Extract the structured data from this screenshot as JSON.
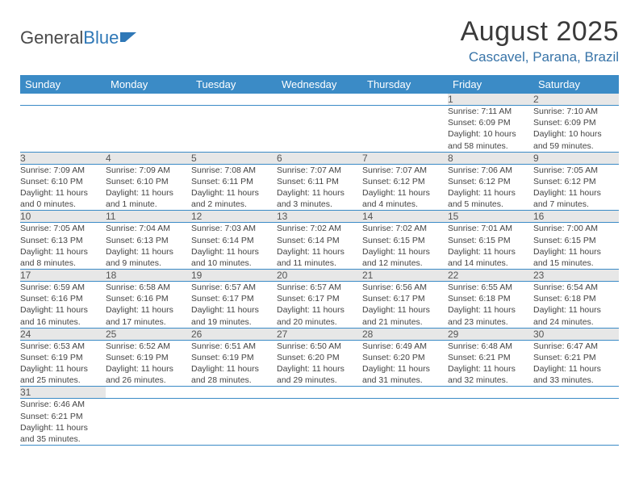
{
  "logo": {
    "text1": "General",
    "text2": "Blue"
  },
  "title": "August 2025",
  "location": "Cascavel, Parana, Brazil",
  "colors": {
    "header_bg": "#3b8bc6",
    "header_text": "#ffffff",
    "daynum_bg": "#e7e7e7",
    "location_color": "#3874a8",
    "row_border": "#3b8bc6"
  },
  "weekdays": [
    "Sunday",
    "Monday",
    "Tuesday",
    "Wednesday",
    "Thursday",
    "Friday",
    "Saturday"
  ],
  "weeks": [
    [
      null,
      null,
      null,
      null,
      null,
      {
        "n": "1",
        "sr": "Sunrise: 7:11 AM",
        "ss": "Sunset: 6:09 PM",
        "d1": "Daylight: 10 hours",
        "d2": "and 58 minutes."
      },
      {
        "n": "2",
        "sr": "Sunrise: 7:10 AM",
        "ss": "Sunset: 6:09 PM",
        "d1": "Daylight: 10 hours",
        "d2": "and 59 minutes."
      }
    ],
    [
      {
        "n": "3",
        "sr": "Sunrise: 7:09 AM",
        "ss": "Sunset: 6:10 PM",
        "d1": "Daylight: 11 hours",
        "d2": "and 0 minutes."
      },
      {
        "n": "4",
        "sr": "Sunrise: 7:09 AM",
        "ss": "Sunset: 6:10 PM",
        "d1": "Daylight: 11 hours",
        "d2": "and 1 minute."
      },
      {
        "n": "5",
        "sr": "Sunrise: 7:08 AM",
        "ss": "Sunset: 6:11 PM",
        "d1": "Daylight: 11 hours",
        "d2": "and 2 minutes."
      },
      {
        "n": "6",
        "sr": "Sunrise: 7:07 AM",
        "ss": "Sunset: 6:11 PM",
        "d1": "Daylight: 11 hours",
        "d2": "and 3 minutes."
      },
      {
        "n": "7",
        "sr": "Sunrise: 7:07 AM",
        "ss": "Sunset: 6:12 PM",
        "d1": "Daylight: 11 hours",
        "d2": "and 4 minutes."
      },
      {
        "n": "8",
        "sr": "Sunrise: 7:06 AM",
        "ss": "Sunset: 6:12 PM",
        "d1": "Daylight: 11 hours",
        "d2": "and 5 minutes."
      },
      {
        "n": "9",
        "sr": "Sunrise: 7:05 AM",
        "ss": "Sunset: 6:12 PM",
        "d1": "Daylight: 11 hours",
        "d2": "and 7 minutes."
      }
    ],
    [
      {
        "n": "10",
        "sr": "Sunrise: 7:05 AM",
        "ss": "Sunset: 6:13 PM",
        "d1": "Daylight: 11 hours",
        "d2": "and 8 minutes."
      },
      {
        "n": "11",
        "sr": "Sunrise: 7:04 AM",
        "ss": "Sunset: 6:13 PM",
        "d1": "Daylight: 11 hours",
        "d2": "and 9 minutes."
      },
      {
        "n": "12",
        "sr": "Sunrise: 7:03 AM",
        "ss": "Sunset: 6:14 PM",
        "d1": "Daylight: 11 hours",
        "d2": "and 10 minutes."
      },
      {
        "n": "13",
        "sr": "Sunrise: 7:02 AM",
        "ss": "Sunset: 6:14 PM",
        "d1": "Daylight: 11 hours",
        "d2": "and 11 minutes."
      },
      {
        "n": "14",
        "sr": "Sunrise: 7:02 AM",
        "ss": "Sunset: 6:15 PM",
        "d1": "Daylight: 11 hours",
        "d2": "and 12 minutes."
      },
      {
        "n": "15",
        "sr": "Sunrise: 7:01 AM",
        "ss": "Sunset: 6:15 PM",
        "d1": "Daylight: 11 hours",
        "d2": "and 14 minutes."
      },
      {
        "n": "16",
        "sr": "Sunrise: 7:00 AM",
        "ss": "Sunset: 6:15 PM",
        "d1": "Daylight: 11 hours",
        "d2": "and 15 minutes."
      }
    ],
    [
      {
        "n": "17",
        "sr": "Sunrise: 6:59 AM",
        "ss": "Sunset: 6:16 PM",
        "d1": "Daylight: 11 hours",
        "d2": "and 16 minutes."
      },
      {
        "n": "18",
        "sr": "Sunrise: 6:58 AM",
        "ss": "Sunset: 6:16 PM",
        "d1": "Daylight: 11 hours",
        "d2": "and 17 minutes."
      },
      {
        "n": "19",
        "sr": "Sunrise: 6:57 AM",
        "ss": "Sunset: 6:17 PM",
        "d1": "Daylight: 11 hours",
        "d2": "and 19 minutes."
      },
      {
        "n": "20",
        "sr": "Sunrise: 6:57 AM",
        "ss": "Sunset: 6:17 PM",
        "d1": "Daylight: 11 hours",
        "d2": "and 20 minutes."
      },
      {
        "n": "21",
        "sr": "Sunrise: 6:56 AM",
        "ss": "Sunset: 6:17 PM",
        "d1": "Daylight: 11 hours",
        "d2": "and 21 minutes."
      },
      {
        "n": "22",
        "sr": "Sunrise: 6:55 AM",
        "ss": "Sunset: 6:18 PM",
        "d1": "Daylight: 11 hours",
        "d2": "and 23 minutes."
      },
      {
        "n": "23",
        "sr": "Sunrise: 6:54 AM",
        "ss": "Sunset: 6:18 PM",
        "d1": "Daylight: 11 hours",
        "d2": "and 24 minutes."
      }
    ],
    [
      {
        "n": "24",
        "sr": "Sunrise: 6:53 AM",
        "ss": "Sunset: 6:19 PM",
        "d1": "Daylight: 11 hours",
        "d2": "and 25 minutes."
      },
      {
        "n": "25",
        "sr": "Sunrise: 6:52 AM",
        "ss": "Sunset: 6:19 PM",
        "d1": "Daylight: 11 hours",
        "d2": "and 26 minutes."
      },
      {
        "n": "26",
        "sr": "Sunrise: 6:51 AM",
        "ss": "Sunset: 6:19 PM",
        "d1": "Daylight: 11 hours",
        "d2": "and 28 minutes."
      },
      {
        "n": "27",
        "sr": "Sunrise: 6:50 AM",
        "ss": "Sunset: 6:20 PM",
        "d1": "Daylight: 11 hours",
        "d2": "and 29 minutes."
      },
      {
        "n": "28",
        "sr": "Sunrise: 6:49 AM",
        "ss": "Sunset: 6:20 PM",
        "d1": "Daylight: 11 hours",
        "d2": "and 31 minutes."
      },
      {
        "n": "29",
        "sr": "Sunrise: 6:48 AM",
        "ss": "Sunset: 6:21 PM",
        "d1": "Daylight: 11 hours",
        "d2": "and 32 minutes."
      },
      {
        "n": "30",
        "sr": "Sunrise: 6:47 AM",
        "ss": "Sunset: 6:21 PM",
        "d1": "Daylight: 11 hours",
        "d2": "and 33 minutes."
      }
    ],
    [
      {
        "n": "31",
        "sr": "Sunrise: 6:46 AM",
        "ss": "Sunset: 6:21 PM",
        "d1": "Daylight: 11 hours",
        "d2": "and 35 minutes."
      },
      null,
      null,
      null,
      null,
      null,
      null
    ]
  ]
}
